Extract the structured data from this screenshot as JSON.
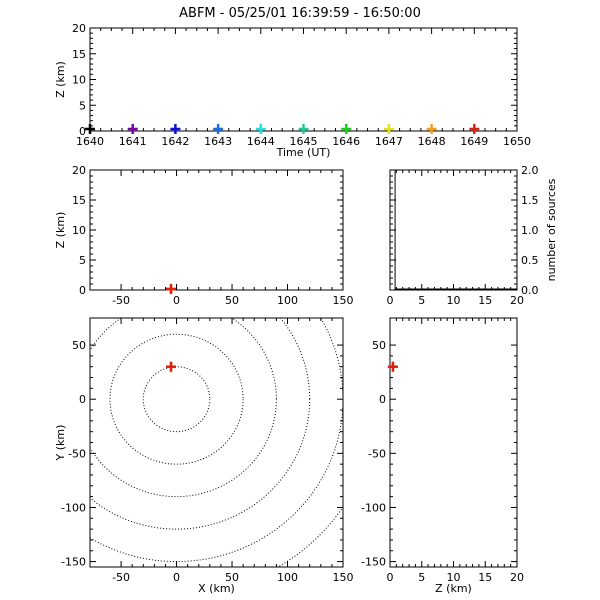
{
  "title": "ABFM - 05/25/01 16:39:59 - 16:50:00",
  "chart_data": [
    {
      "id": "time_height",
      "type": "scatter",
      "xlabel": "Time (UT)",
      "ylabel": "Z (km)",
      "xlim": [
        1640,
        1650
      ],
      "ylim": [
        0,
        20
      ],
      "xticks": [
        "1640",
        "1641",
        "1642",
        "1643",
        "1644",
        "1645",
        "1646",
        "1647",
        "1648",
        "1649",
        "1650"
      ],
      "yticks": [
        "0",
        "5",
        "10",
        "15",
        "20"
      ],
      "points": [
        {
          "x": 1640.0,
          "y": 0.0,
          "color": "#000000"
        },
        {
          "x": 1641.0,
          "y": 0.0,
          "color": "#7a00a8"
        },
        {
          "x": 1642.0,
          "y": 0.0,
          "color": "#1010d8"
        },
        {
          "x": 1643.0,
          "y": 0.0,
          "color": "#1a6ee8"
        },
        {
          "x": 1644.0,
          "y": 0.0,
          "color": "#22e0e0"
        },
        {
          "x": 1645.0,
          "y": 0.0,
          "color": "#20c8a0"
        },
        {
          "x": 1646.0,
          "y": 0.0,
          "color": "#18d018"
        },
        {
          "x": 1647.0,
          "y": 0.0,
          "color": "#e8e020"
        },
        {
          "x": 1648.0,
          "y": 0.0,
          "color": "#f0a020"
        },
        {
          "x": 1649.0,
          "y": 0.0,
          "color": "#e02010"
        }
      ]
    },
    {
      "id": "xz",
      "type": "scatter",
      "xlabel": "",
      "ylabel": "Z (km)",
      "xlim": [
        -78,
        150
      ],
      "ylim": [
        0,
        20
      ],
      "xticks": [
        "-50",
        "0",
        "50",
        "100",
        "150"
      ],
      "yticks": [
        "0",
        "5",
        "10",
        "15",
        "20"
      ],
      "points": [
        {
          "x": -5,
          "y": 0.0,
          "color": "#f0a020"
        },
        {
          "x": -5,
          "y": 0.0,
          "color": "#e02010"
        }
      ]
    },
    {
      "id": "height_histogram",
      "type": "bar",
      "xlabel": "",
      "ylabel": "number of sources",
      "xlim": [
        0,
        20
      ],
      "ylim": [
        0,
        2
      ],
      "xticks": [
        "0",
        "5",
        "10",
        "15",
        "20"
      ],
      "yticks": [
        "0.0",
        "0.5",
        "1.0",
        "1.5",
        "2.0"
      ],
      "bins": [
        {
          "start": 0.0,
          "end": 0.8,
          "count": 2
        },
        {
          "start": 0.8,
          "end": 20.0,
          "count": 0
        }
      ]
    },
    {
      "id": "plan_view",
      "type": "scatter",
      "xlabel": "X (km)",
      "ylabel": "Y (km)",
      "xlim": [
        -78,
        150
      ],
      "ylim": [
        -155,
        75
      ],
      "xticks": [
        "-50",
        "0",
        "50",
        "100",
        "150"
      ],
      "yticks": [
        "-150",
        "-100",
        "-50",
        "0",
        "50"
      ],
      "range_rings_km": [
        30,
        60,
        90,
        120,
        150,
        180
      ],
      "points": [
        {
          "x": -5,
          "y": 30,
          "color": "#f0a020"
        },
        {
          "x": -5,
          "y": 30,
          "color": "#e02010"
        }
      ]
    },
    {
      "id": "zy",
      "type": "scatter",
      "xlabel": "Z (km)",
      "ylabel": "",
      "xlim": [
        0,
        20
      ],
      "ylim": [
        -155,
        75
      ],
      "xticks": [
        "0",
        "5",
        "10",
        "15",
        "20"
      ],
      "yticks": [
        "-150",
        "-100",
        "-50",
        "0",
        "50"
      ],
      "points": [
        {
          "x": 0.3,
          "y": 30,
          "color": "#f0a020"
        },
        {
          "x": 0.3,
          "y": 30,
          "color": "#e02010"
        }
      ]
    }
  ]
}
